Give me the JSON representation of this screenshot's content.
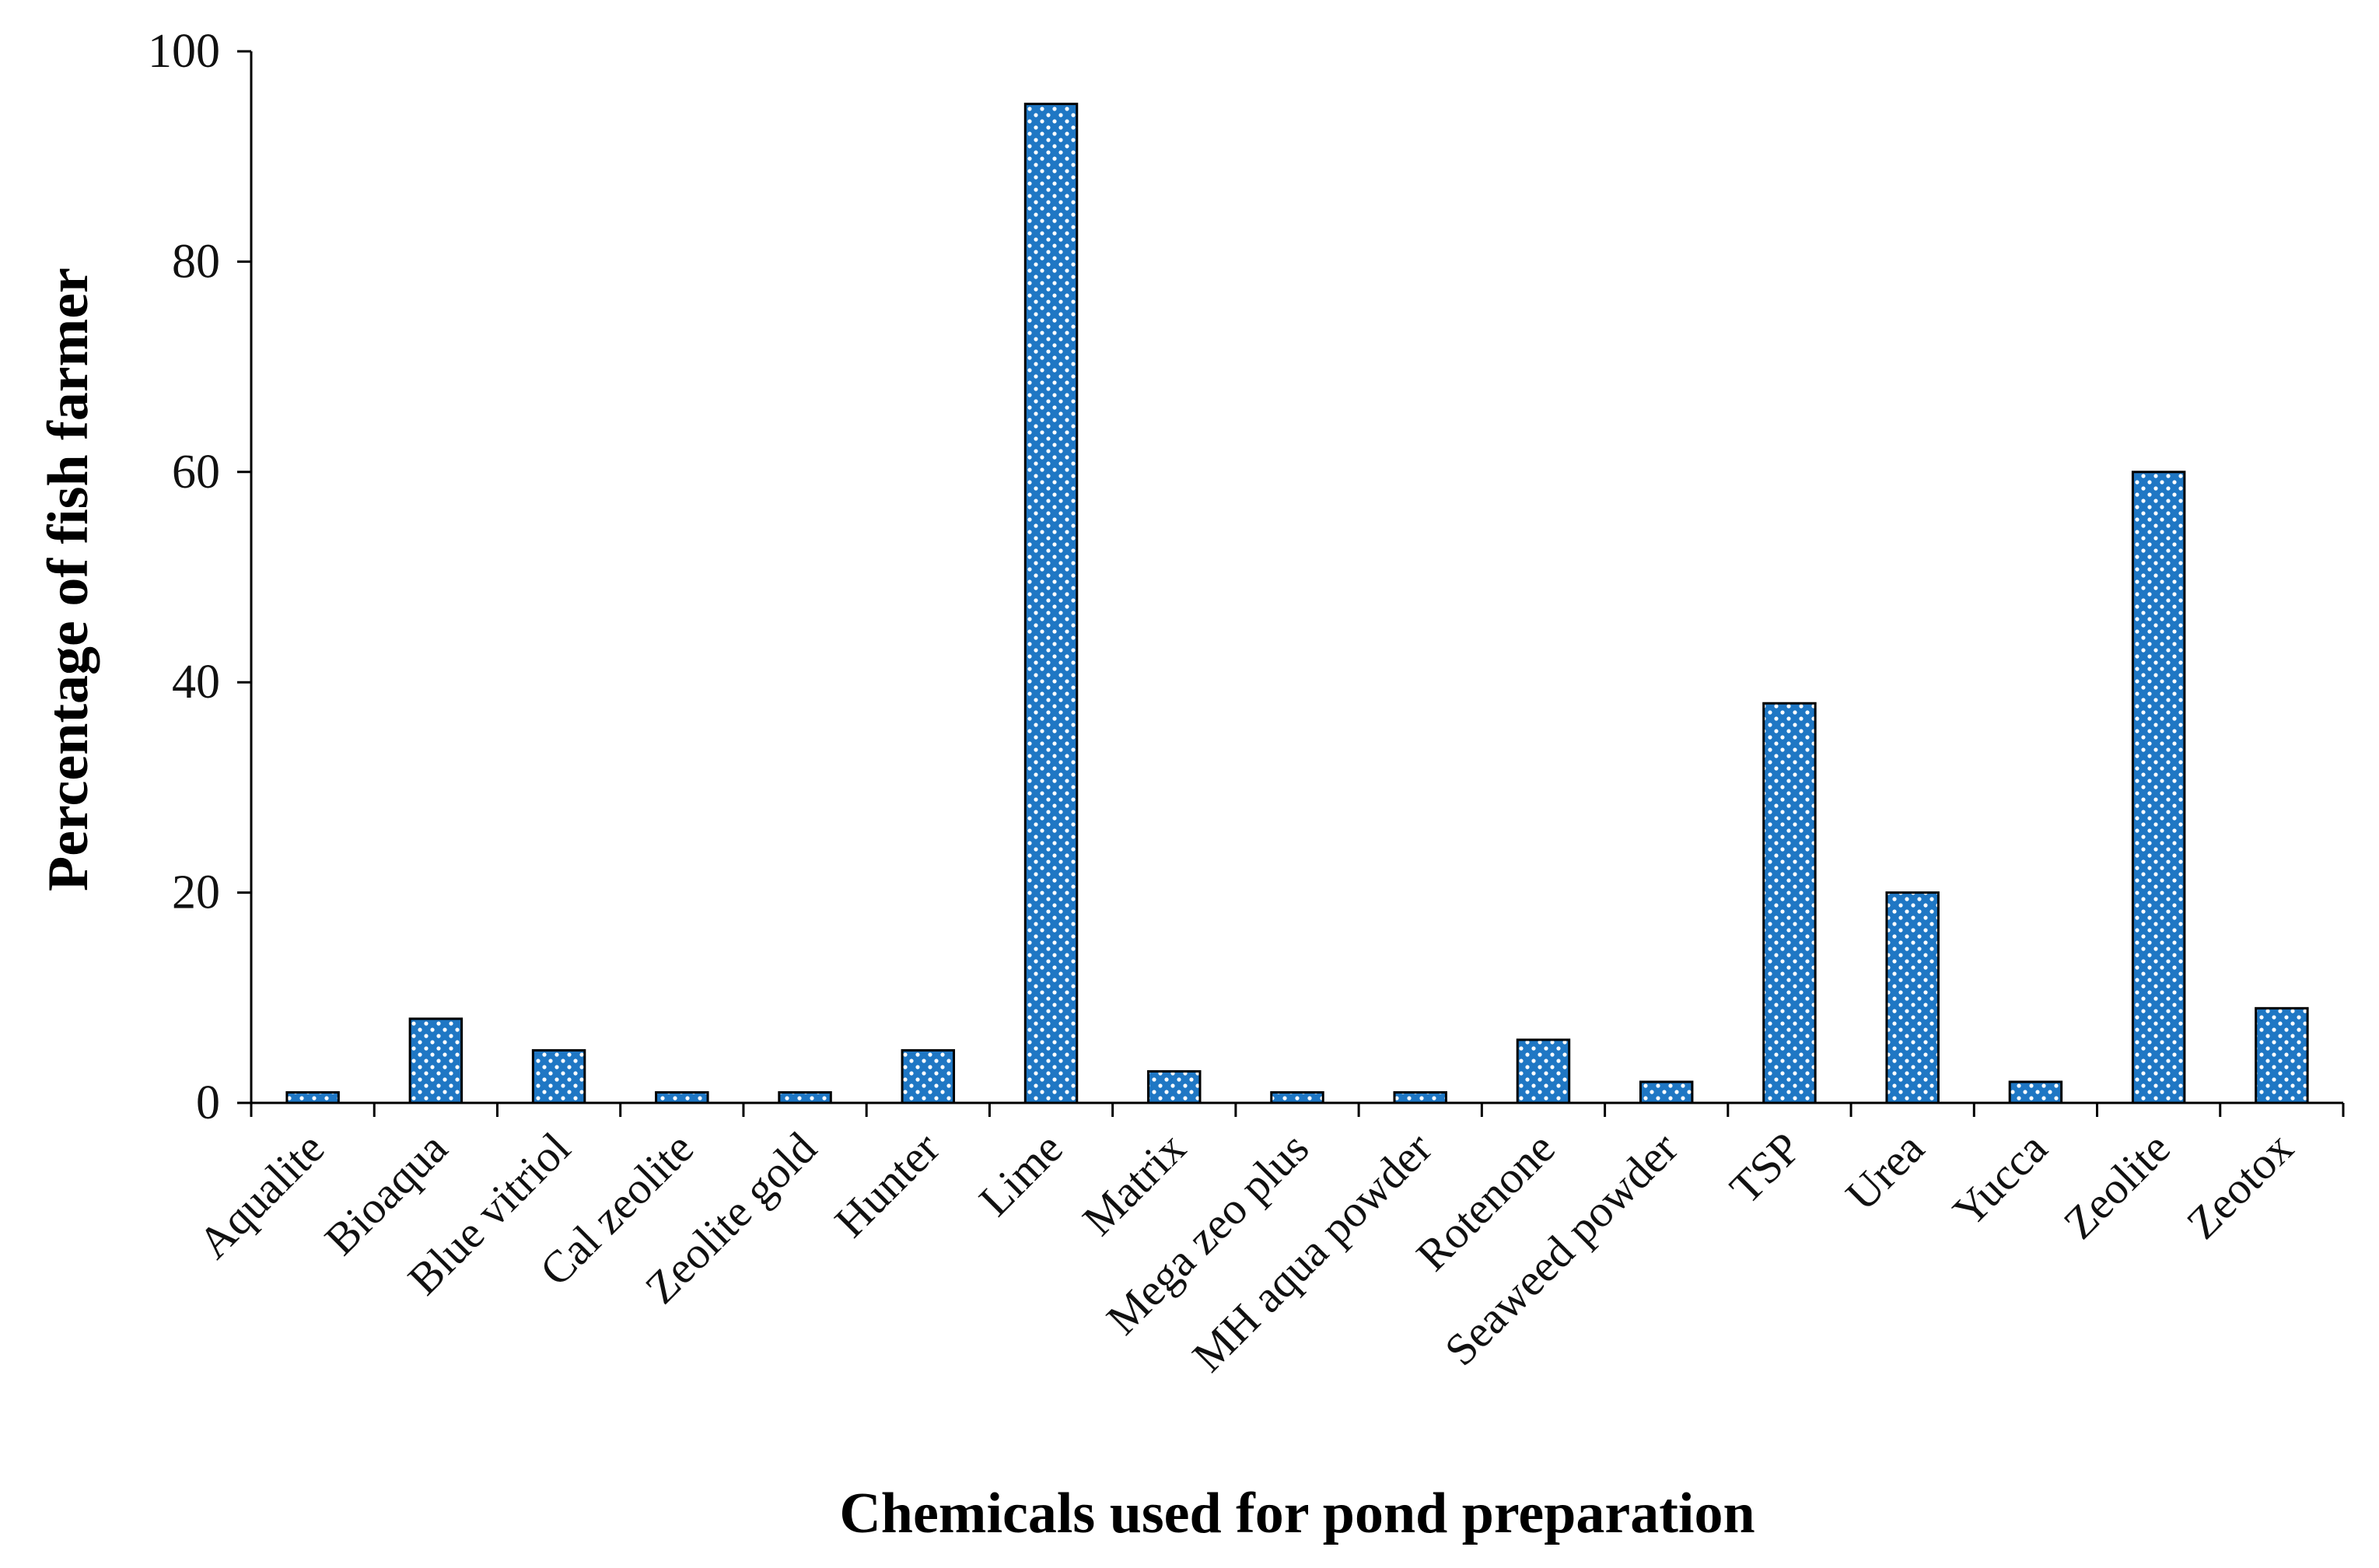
{
  "chart_data": {
    "type": "bar",
    "title": "",
    "xlabel": "Chemicals used for pond preparation",
    "ylabel": "Percentage of fish farmer",
    "ylim": [
      0,
      100
    ],
    "yticks": [
      0,
      20,
      40,
      60,
      80,
      100
    ],
    "grid": false,
    "legend": "none",
    "bar_color": "#1f77c4",
    "bar_pattern": "white dots",
    "categories": [
      "Aqualite",
      "Bioaqua",
      "Blue vitriol",
      "Cal zeolite",
      "Zeolite gold",
      "Hunter",
      "Lime",
      "Matrix",
      "Mega zeo plus",
      "MH aqua powder",
      "Rotenone",
      "Seaweed powder",
      "TSP",
      "Urea",
      "Yucca",
      "Zeolite",
      "Zeotox"
    ],
    "values": [
      1,
      8,
      5,
      1,
      1,
      5,
      95,
      3,
      1,
      1,
      6,
      2,
      38,
      20,
      2,
      60,
      9
    ]
  }
}
